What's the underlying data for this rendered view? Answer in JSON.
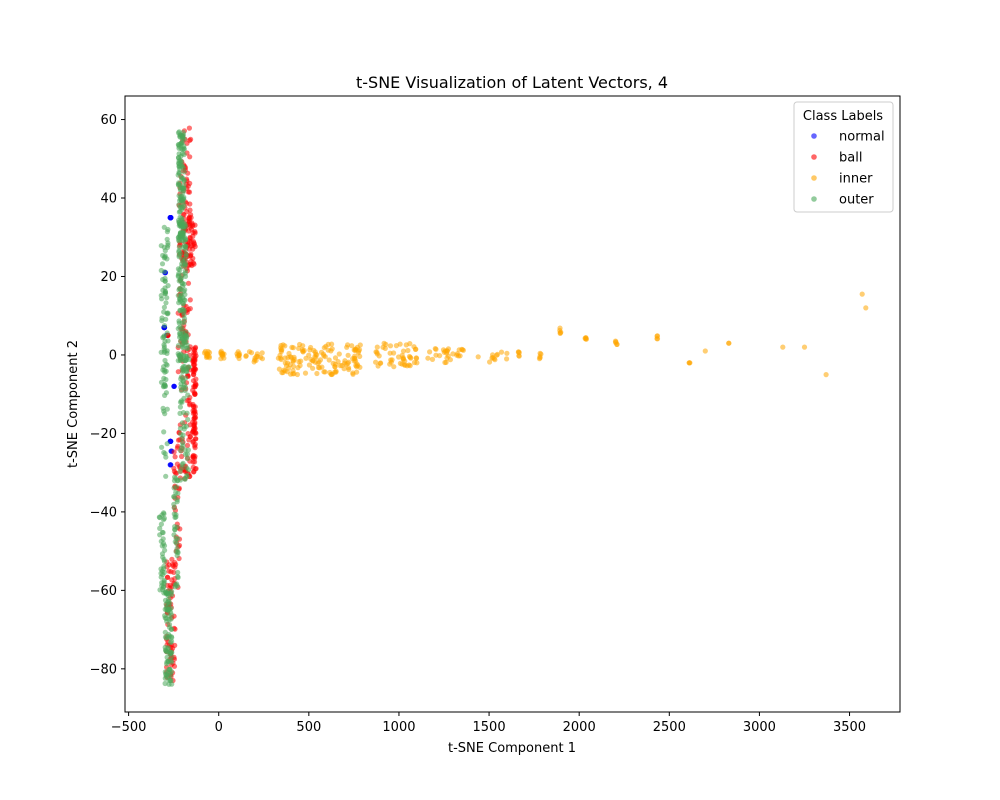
{
  "chart_data": {
    "type": "scatter",
    "title": "t-SNE Visualization of Latent Vectors, 4",
    "xlabel": "t-SNE Component 1",
    "ylabel": "t-SNE Component 2",
    "xlim": [
      -520,
      3780
    ],
    "ylim": [
      -91,
      66
    ],
    "x_ticks": [
      -500,
      0,
      500,
      1000,
      1500,
      2000,
      2500,
      3000,
      3500
    ],
    "y_ticks": [
      -80,
      -60,
      -40,
      -20,
      0,
      20,
      40,
      60
    ],
    "grid": false,
    "legend": {
      "title": "Class Labels",
      "placement": "top-right"
    },
    "series": [
      {
        "name": "normal",
        "color": "#0000ff",
        "clusters": [
          {
            "x": [
              -270,
              -265
            ],
            "y": [
              35,
              35
            ],
            "n": 14
          },
          {
            "x": [
              -305,
              -300
            ],
            "y": [
              7,
              7
            ],
            "n": 10
          },
          {
            "x": [
              -270,
              -265
            ],
            "y": [
              -22,
              -22
            ],
            "n": 10
          },
          {
            "x": [
              -270,
              -265
            ],
            "y": [
              -28,
              -28
            ],
            "n": 4
          },
          {
            "x": [
              -250,
              -245
            ],
            "y": [
              -8,
              -8
            ],
            "n": 4
          },
          {
            "x": [
              -300,
              -295
            ],
            "y": [
              21,
              21
            ],
            "n": 4
          },
          {
            "x": [
              -265,
              -260
            ],
            "y": [
              -24.5,
              -24.5
            ],
            "n": 3
          },
          {
            "x": [
              -290,
              -285
            ],
            "y": [
              5,
              5
            ],
            "n": 3
          }
        ]
      },
      {
        "name": "ball",
        "color": "#ff0000",
        "clusters": [
          {
            "x": [
              -145,
              -125
            ],
            "y": [
              -30,
              2
            ],
            "n": 90
          },
          {
            "x": [
              -200,
              -130
            ],
            "y": [
              22,
              36
            ],
            "n": 60
          },
          {
            "x": [
              -225,
              -155
            ],
            "y": [
              -32,
              58
            ],
            "n": 150
          },
          {
            "x": [
              -290,
              -240
            ],
            "y": [
              -83,
              -50
            ],
            "n": 60
          },
          {
            "x": [
              -250,
              -215
            ],
            "y": [
              -60,
              -20
            ],
            "n": 40
          },
          {
            "x": [
              -285,
              -280
            ],
            "y": [
              5,
              5
            ],
            "n": 4
          }
        ]
      },
      {
        "name": "inner",
        "color": "#ffa500",
        "clusters": [
          {
            "x": [
              -80,
              -50
            ],
            "y": [
              -1,
              1
            ],
            "n": 12
          },
          {
            "x": [
              10,
              30
            ],
            "y": [
              -1,
              1
            ],
            "n": 10
          },
          {
            "x": [
              100,
              120
            ],
            "y": [
              -1,
              1
            ],
            "n": 8
          },
          {
            "x": [
              150,
              250
            ],
            "y": [
              -2,
              1
            ],
            "n": 14
          },
          {
            "x": [
              330,
              800
            ],
            "y": [
              -5,
              3
            ],
            "n": 140
          },
          {
            "x": [
              850,
              1100
            ],
            "y": [
              -3,
              3
            ],
            "n": 50
          },
          {
            "x": [
              1150,
              1300
            ],
            "y": [
              -2,
              2
            ],
            "n": 20
          },
          {
            "x": [
              1320,
              1360
            ],
            "y": [
              -1,
              2
            ],
            "n": 8
          },
          {
            "x": [
              1420,
              1600
            ],
            "y": [
              -2,
              1
            ],
            "n": 12
          },
          {
            "x": [
              1660,
              1670
            ],
            "y": [
              -1,
              1
            ],
            "n": 5
          },
          {
            "x": [
              1780,
              1790
            ],
            "y": [
              -1,
              1
            ],
            "n": 5
          },
          {
            "x": [
              1890,
              1900
            ],
            "y": [
              5,
              7
            ],
            "n": 5
          },
          {
            "x": [
              2030,
              2040
            ],
            "y": [
              4,
              5
            ],
            "n": 5
          },
          {
            "x": [
              2200,
              2210
            ],
            "y": [
              2,
              4
            ],
            "n": 5
          },
          {
            "x": [
              2430,
              2440
            ],
            "y": [
              4,
              5
            ],
            "n": 4
          },
          {
            "x": [
              2610,
              2615
            ],
            "y": [
              -2,
              -2
            ],
            "n": 3
          },
          {
            "x": [
              2700,
              2700
            ],
            "y": [
              1,
              1
            ],
            "n": 1
          },
          {
            "x": [
              2830,
              2830
            ],
            "y": [
              3,
              3
            ],
            "n": 2
          },
          {
            "x": [
              3130,
              3130
            ],
            "y": [
              2,
              2
            ],
            "n": 1
          },
          {
            "x": [
              3250,
              3250
            ],
            "y": [
              2,
              2
            ],
            "n": 1
          },
          {
            "x": [
              3370,
              3370
            ],
            "y": [
              -5,
              -5
            ],
            "n": 1
          },
          {
            "x": [
              3570,
              3570
            ],
            "y": [
              15.5,
              15.5
            ],
            "n": 1
          },
          {
            "x": [
              3590,
              3590
            ],
            "y": [
              12,
              12
            ],
            "n": 1
          }
        ]
      },
      {
        "name": "outer",
        "color": "#4aa85a",
        "clusters": [
          {
            "x": [
              -225,
              -190
            ],
            "y": [
              30,
              57
            ],
            "n": 120
          },
          {
            "x": [
              -225,
              -180
            ],
            "y": [
              -5,
              35
            ],
            "n": 120
          },
          {
            "x": [
              -215,
              -165
            ],
            "y": [
              -32,
              5
            ],
            "n": 80
          },
          {
            "x": [
              -250,
              -225
            ],
            "y": [
              -60,
              -30
            ],
            "n": 40
          },
          {
            "x": [
              -300,
              -260
            ],
            "y": [
              -84,
              -60
            ],
            "n": 90
          },
          {
            "x": [
              -330,
              -300
            ],
            "y": [
              -62,
              -38
            ],
            "n": 40
          },
          {
            "x": [
              -320,
              -280
            ],
            "y": [
              -32,
              34
            ],
            "n": 60
          },
          {
            "x": [
              -305,
              -295
            ],
            "y": [
              15,
              28
            ],
            "n": 12
          },
          {
            "x": [
              -305,
              -290
            ],
            "y": [
              -12,
              10
            ],
            "n": 14
          }
        ]
      }
    ]
  }
}
